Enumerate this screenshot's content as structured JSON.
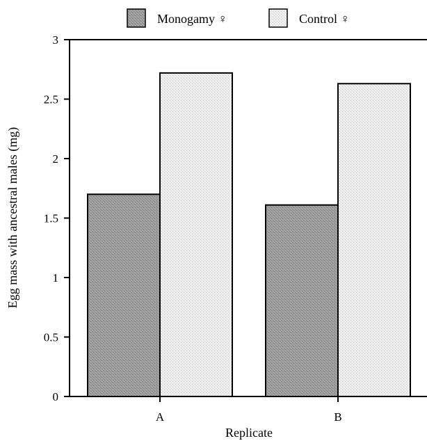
{
  "chart_data": {
    "type": "bar",
    "title": "",
    "xlabel": "Replicate",
    "ylabel": "Egg mass with ancestral males (mg)",
    "categories": [
      "A",
      "B"
    ],
    "ylim": [
      0,
      3
    ],
    "yticks": [
      0,
      0.5,
      1,
      1.5,
      2,
      2.5,
      3
    ],
    "ytick_labels": [
      "0",
      "0.5",
      "1",
      "1.5",
      "2",
      "2.5",
      "3"
    ],
    "grid": false,
    "legend_position": "top",
    "series": [
      {
        "name": "Monogamy ♀",
        "values": [
          1.7,
          1.61
        ],
        "color": "#9a9a9a",
        "pattern": "dark-stipple"
      },
      {
        "name": "Control ♀",
        "values": [
          2.72,
          2.63
        ],
        "color": "#e6e6e6",
        "pattern": "light-stipple"
      }
    ]
  }
}
